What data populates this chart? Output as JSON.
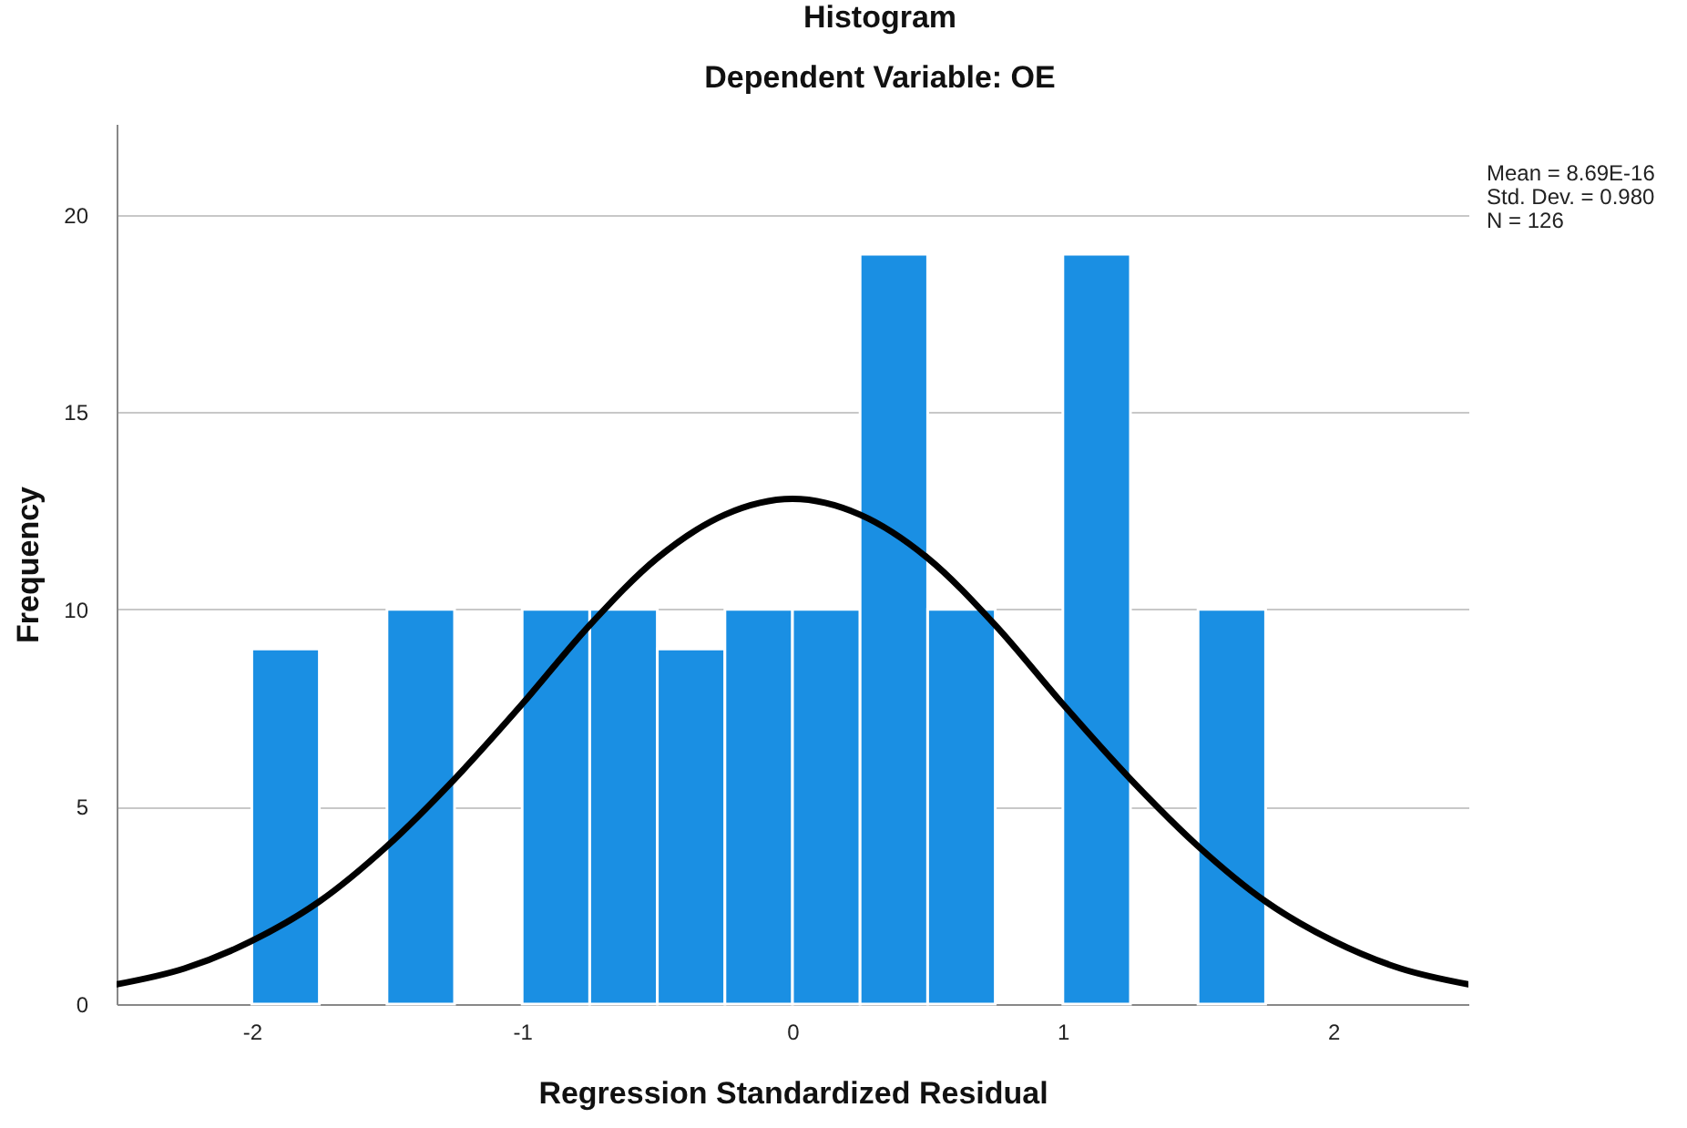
{
  "chart_data": {
    "type": "histogram",
    "title": "Histogram",
    "subtitle": "Dependent Variable: OE",
    "xlabel": "Regression Standardized Residual",
    "ylabel": "Frequency",
    "bins": [
      -2,
      -1.75,
      -1.5,
      -1.25,
      -1,
      -0.75,
      -0.5,
      -0.25,
      0,
      0.25,
      0.5,
      0.75,
      1,
      1.25,
      1.5,
      1.75
    ],
    "values": [
      9,
      0,
      10,
      0,
      10,
      10,
      9,
      10,
      10,
      19,
      10,
      0,
      19,
      0,
      10
    ],
    "color": "#1a8fe3",
    "series": [
      {
        "type": "line",
        "color": "#000000",
        "x": [
          -2.5,
          -2.25,
          -2,
          -1.75,
          -1.5,
          -1.25,
          -1,
          -0.75,
          -0.5,
          -0.25,
          0,
          0.25,
          0.5,
          0.75,
          1,
          1.25,
          1.5,
          1.75,
          2,
          2.25,
          2.5
        ],
        "values": [
          0.5,
          0.9,
          1.6,
          2.6,
          4.0,
          5.7,
          7.6,
          9.6,
          11.3,
          12.4,
          12.8,
          12.4,
          11.3,
          9.6,
          7.6,
          5.7,
          4.0,
          2.6,
          1.6,
          0.9,
          0.5
        ]
      }
    ],
    "annotations": [
      "Mean = 8.69E-16",
      "Std. Dev. = 0.980",
      "N = 126"
    ],
    "xlim": [
      -2.5,
      2.5
    ],
    "ylim": [
      0,
      22.3
    ],
    "xticks": [
      -2,
      -1,
      0,
      1,
      2
    ],
    "yticks": [
      0,
      5,
      10,
      15,
      20
    ],
    "grid": "y",
    "marker": "none",
    "line_style": "solid"
  }
}
